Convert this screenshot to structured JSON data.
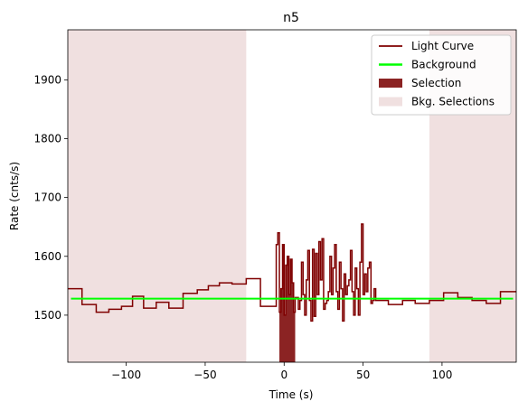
{
  "chart_data": {
    "type": "line",
    "title": "n5",
    "xlabel": "Time (s)",
    "ylabel": "Rate (cnts/s)",
    "xlim": [
      -137,
      147
    ],
    "ylim": [
      1420,
      1985
    ],
    "xticks": [
      -100,
      -50,
      0,
      50,
      100
    ],
    "yticks": [
      1500,
      1600,
      1700,
      1800,
      1900
    ],
    "grid": false,
    "legend_position": "top-right",
    "colors": {
      "light_curve": "#7f0000",
      "background": "#00ff00",
      "selection": "#8b2323",
      "bkg_selection": "#f0e0e0"
    },
    "legend": [
      {
        "label": "Light Curve",
        "kind": "line"
      },
      {
        "label": "Background",
        "kind": "line"
      },
      {
        "label": "Selection",
        "kind": "patch"
      },
      {
        "label": "Bkg. Selections",
        "kind": "patch"
      }
    ],
    "background_level": 1528,
    "background_range": [
      -135,
      145
    ],
    "selection": [
      -3,
      7
    ],
    "bkg_selections": [
      [
        -137,
        -24
      ],
      [
        92,
        147
      ]
    ],
    "light_curve": {
      "x": [
        -137,
        -128,
        -119,
        -111,
        -103,
        -96,
        -89,
        -81,
        -73,
        -64,
        -55,
        -48,
        -41,
        -33,
        -24,
        -15,
        -5,
        -4,
        -3,
        -2,
        -1,
        0,
        1,
        2,
        3,
        4,
        5,
        6,
        7,
        8,
        9,
        10,
        11,
        12,
        13,
        14,
        15,
        16,
        17,
        18,
        19,
        20,
        21,
        22,
        23,
        24,
        25,
        26,
        27,
        28,
        29,
        30,
        31,
        32,
        33,
        34,
        35,
        36,
        37,
        38,
        39,
        40,
        41,
        42,
        43,
        44,
        45,
        46,
        47,
        48,
        49,
        50,
        51,
        52,
        53,
        54,
        55,
        56,
        57,
        58,
        66,
        75,
        83,
        92,
        101,
        110,
        119,
        128,
        137,
        147
      ],
      "y": [
        1545,
        1518,
        1505,
        1510,
        1515,
        1532,
        1512,
        1522,
        1512,
        1537,
        1543,
        1550,
        1555,
        1553,
        1562,
        1515,
        1620,
        1640,
        1505,
        1545,
        1620,
        1500,
        1585,
        1600,
        1535,
        1595,
        1555,
        1505,
        1530,
        1530,
        1510,
        1525,
        1590,
        1535,
        1500,
        1560,
        1610,
        1525,
        1490,
        1612,
        1498,
        1605,
        1535,
        1625,
        1560,
        1630,
        1510,
        1520,
        1525,
        1540,
        1600,
        1535,
        1580,
        1620,
        1540,
        1510,
        1590,
        1545,
        1490,
        1570,
        1535,
        1550,
        1560,
        1610,
        1540,
        1500,
        1580,
        1545,
        1500,
        1590,
        1655,
        1535,
        1570,
        1540,
        1580,
        1590,
        1520,
        1525,
        1545,
        1525,
        1518,
        1525,
        1520,
        1525,
        1538,
        1530,
        1525,
        1520,
        1540,
        1540
      ]
    }
  }
}
